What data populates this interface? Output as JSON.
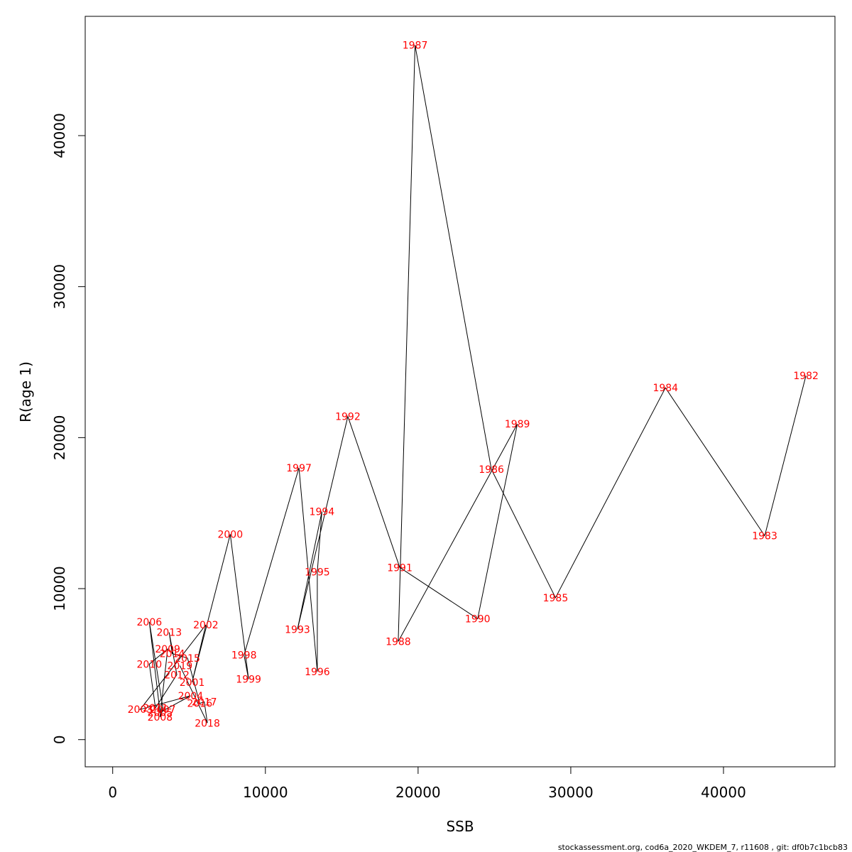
{
  "chart_data": {
    "type": "line",
    "xlabel": "SSB",
    "ylabel": "R(age 1)",
    "xlim": [
      -1800,
      47300
    ],
    "ylim": [
      -1800,
      47900
    ],
    "x_ticks": [
      0,
      10000,
      20000,
      30000,
      40000
    ],
    "x_tick_labels": [
      "0",
      "10000",
      "20000",
      "30000",
      "40000"
    ],
    "y_ticks": [
      0,
      10000,
      20000,
      30000,
      40000
    ],
    "y_tick_labels": [
      "0",
      "10000",
      "20000",
      "30000",
      "40000"
    ],
    "grid": false,
    "line_color": "#000000",
    "label_color": "#ff0000",
    "points": [
      {
        "year": "1982",
        "x": 45400,
        "y": 24100
      },
      {
        "year": "1983",
        "x": 42700,
        "y": 13500
      },
      {
        "year": "1984",
        "x": 36200,
        "y": 23300
      },
      {
        "year": "1985",
        "x": 29000,
        "y": 9400
      },
      {
        "year": "1986",
        "x": 24800,
        "y": 17900
      },
      {
        "year": "1987",
        "x": 19800,
        "y": 46000
      },
      {
        "year": "1988",
        "x": 18700,
        "y": 6500
      },
      {
        "year": "1989",
        "x": 26500,
        "y": 20900
      },
      {
        "year": "1990",
        "x": 23900,
        "y": 8000
      },
      {
        "year": "1991",
        "x": 18800,
        "y": 11400
      },
      {
        "year": "1992",
        "x": 15400,
        "y": 21400
      },
      {
        "year": "1993",
        "x": 12100,
        "y": 7300
      },
      {
        "year": "1994",
        "x": 13700,
        "y": 15100
      },
      {
        "year": "1995",
        "x": 13400,
        "y": 11100
      },
      {
        "year": "1996",
        "x": 13400,
        "y": 4500
      },
      {
        "year": "1997",
        "x": 12200,
        "y": 18000
      },
      {
        "year": "1998",
        "x": 8600,
        "y": 5600
      },
      {
        "year": "1999",
        "x": 8900,
        "y": 4000
      },
      {
        "year": "2000",
        "x": 7700,
        "y": 13600
      },
      {
        "year": "2001",
        "x": 5200,
        "y": 3800
      },
      {
        "year": "2002",
        "x": 6100,
        "y": 7600
      },
      {
        "year": "2003",
        "x": 1800,
        "y": 2000
      },
      {
        "year": "2004",
        "x": 5100,
        "y": 2900
      },
      {
        "year": "2005",
        "x": 3100,
        "y": 1800
      },
      {
        "year": "2006",
        "x": 2400,
        "y": 7800
      },
      {
        "year": "2007",
        "x": 3300,
        "y": 2000
      },
      {
        "year": "2008",
        "x": 3100,
        "y": 1500
      },
      {
        "year": "2009",
        "x": 3600,
        "y": 6000
      },
      {
        "year": "2010",
        "x": 2400,
        "y": 5000
      },
      {
        "year": "2011",
        "x": 2800,
        "y": 2100
      },
      {
        "year": "2012",
        "x": 4200,
        "y": 4300
      },
      {
        "year": "2013",
        "x": 3700,
        "y": 7100
      },
      {
        "year": "2014",
        "x": 3900,
        "y": 5700
      },
      {
        "year": "2015",
        "x": 4900,
        "y": 5400
      },
      {
        "year": "2016",
        "x": 5700,
        "y": 2400
      },
      {
        "year": "2017",
        "x": 6000,
        "y": 2500
      },
      {
        "year": "2018",
        "x": 6200,
        "y": 1100
      },
      {
        "year": "2019",
        "x": 4400,
        "y": 4900
      }
    ]
  },
  "footer": "stockassessment.org, cod6a_2020_WKDEM_7, r11608 , git: df0b7c1bcb83"
}
